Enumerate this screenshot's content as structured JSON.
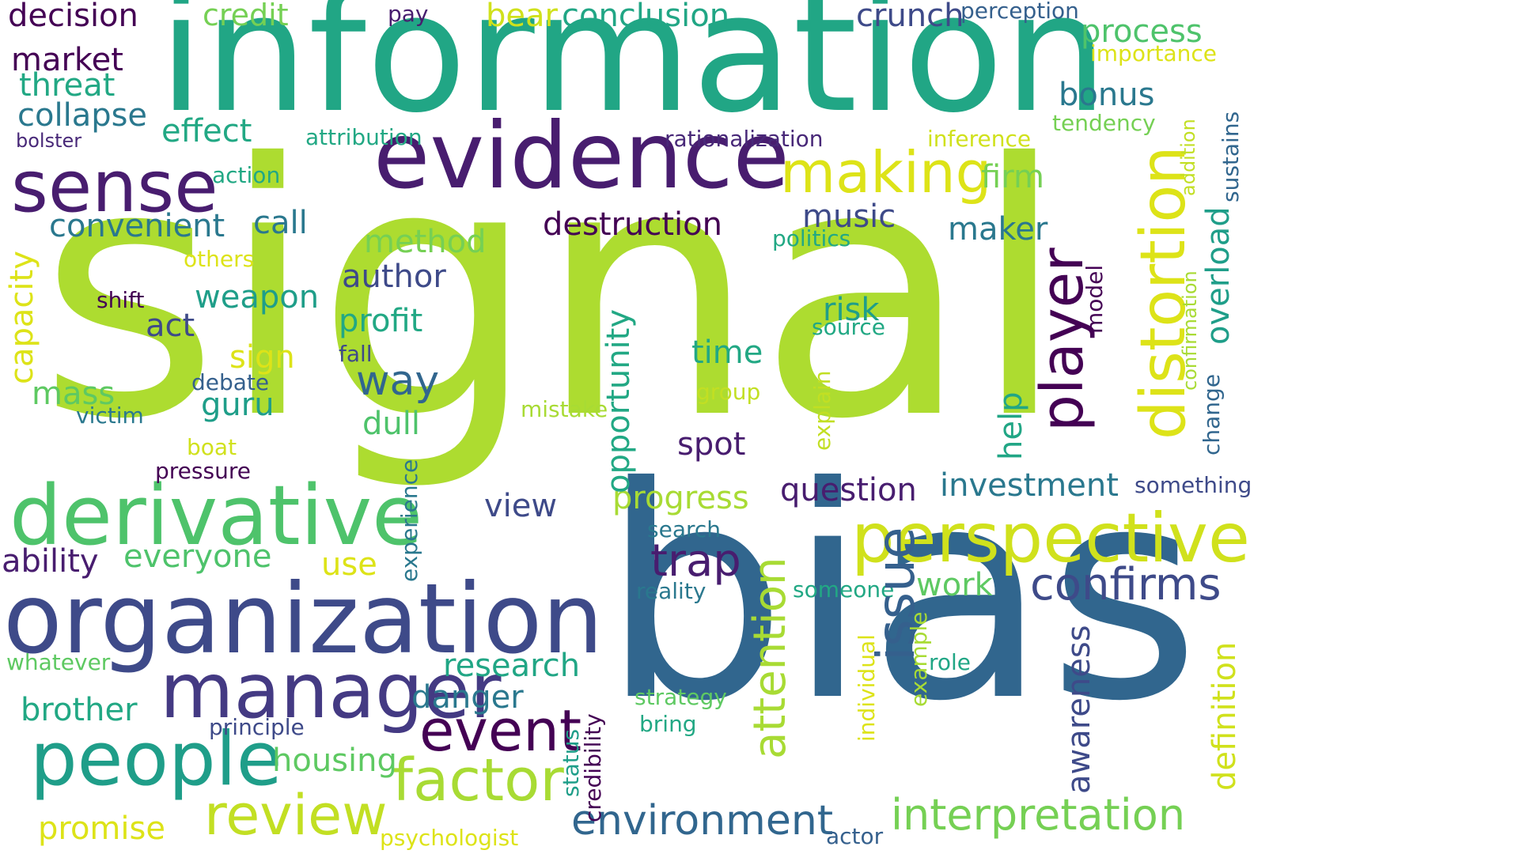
{
  "palette": {
    "lime": "#addc30",
    "lime2": "#a8db34",
    "teal": "#21a685",
    "blue": "#31668e",
    "indigo": "#443a83",
    "purple": "#481d6f",
    "purple2": "#440154",
    "navy": "#3e4a89",
    "yellow": "#dde318",
    "yellow2": "#d0e11c",
    "green": "#4ec36b",
    "green2": "#75d054",
    "sea": "#1f9e89",
    "cyan": "#2a788e",
    "steel": "#35608d",
    "deep": "#482878",
    "jade": "#22a884",
    "moss": "#5ec962",
    "lemon": "#c2df23"
  },
  "words": [
    {
      "text": "signal",
      "color": "#addc30"
    },
    {
      "text": "information",
      "color": "#21a685"
    },
    {
      "text": "bias",
      "color": "#31668e"
    },
    {
      "text": "evidence",
      "color": "#481d6f"
    },
    {
      "text": "organization",
      "color": "#3e4a89"
    },
    {
      "text": "derivative",
      "color": "#4ec36b"
    },
    {
      "text": "perspective",
      "color": "#d0e11c"
    },
    {
      "text": "manager",
      "color": "#443a83"
    },
    {
      "text": "people",
      "color": "#1f9e89"
    },
    {
      "text": "sense",
      "color": "#481d6f"
    },
    {
      "text": "making",
      "color": "#dde318"
    },
    {
      "text": "distortion",
      "color": "#dde318"
    },
    {
      "text": "player",
      "color": "#440154"
    },
    {
      "text": "factor",
      "color": "#a8db34"
    },
    {
      "text": "review",
      "color": "#c2df23"
    },
    {
      "text": "event",
      "color": "#440154"
    },
    {
      "text": "issue",
      "color": "#35608d"
    },
    {
      "text": "interpretation",
      "color": "#75d054"
    },
    {
      "text": "environment",
      "color": "#31668e"
    },
    {
      "text": "confirms",
      "color": "#3e4a89"
    },
    {
      "text": "attention",
      "color": "#a8db34"
    },
    {
      "text": "trap",
      "color": "#481d6f"
    },
    {
      "text": "decision",
      "color": "#440154"
    },
    {
      "text": "credit",
      "color": "#75d054"
    },
    {
      "text": "pay",
      "color": "#481d6f"
    },
    {
      "text": "bear",
      "color": "#d0e11c"
    },
    {
      "text": "conclusion",
      "color": "#21a685"
    },
    {
      "text": "crunch",
      "color": "#3e4a89"
    },
    {
      "text": "perception",
      "color": "#35608d"
    },
    {
      "text": "process",
      "color": "#4ec36b"
    },
    {
      "text": "importance",
      "color": "#dde318"
    },
    {
      "text": "market",
      "color": "#440154"
    },
    {
      "text": "threat",
      "color": "#22a884"
    },
    {
      "text": "collapse",
      "color": "#2a788e"
    },
    {
      "text": "bolster",
      "color": "#482878"
    },
    {
      "text": "effect",
      "color": "#22a884"
    },
    {
      "text": "attribution",
      "color": "#22a884"
    },
    {
      "text": "rationalization",
      "color": "#482878"
    },
    {
      "text": "inference",
      "color": "#d0e11c"
    },
    {
      "text": "tendency",
      "color": "#75d054"
    },
    {
      "text": "bonus",
      "color": "#2a788e"
    },
    {
      "text": "firm",
      "color": "#75d054"
    },
    {
      "text": "action",
      "color": "#22a884"
    },
    {
      "text": "convenient",
      "color": "#2a788e"
    },
    {
      "text": "call",
      "color": "#2a788e"
    },
    {
      "text": "destruction",
      "color": "#440154"
    },
    {
      "text": "music",
      "color": "#3e4a89"
    },
    {
      "text": "maker",
      "color": "#2a788e"
    },
    {
      "text": "politics",
      "color": "#22a884"
    },
    {
      "text": "method",
      "color": "#75d054"
    },
    {
      "text": "capacity",
      "color": "#dde318"
    },
    {
      "text": "others",
      "color": "#dde318"
    },
    {
      "text": "author",
      "color": "#3e4a89"
    },
    {
      "text": "weapon",
      "color": "#1f9e89"
    },
    {
      "text": "shift",
      "color": "#440154"
    },
    {
      "text": "act",
      "color": "#3e4a89"
    },
    {
      "text": "profit",
      "color": "#22a884"
    },
    {
      "text": "opportunity",
      "color": "#22a884"
    },
    {
      "text": "risk",
      "color": "#1f9e89"
    },
    {
      "text": "source",
      "color": "#22a884"
    },
    {
      "text": "overload",
      "color": "#1f9e89"
    },
    {
      "text": "sign",
      "color": "#dde318"
    },
    {
      "text": "fall",
      "color": "#3e4a89"
    },
    {
      "text": "way",
      "color": "#31668e"
    },
    {
      "text": "time",
      "color": "#22a884"
    },
    {
      "text": "model",
      "color": "#440154"
    },
    {
      "text": "confirmation",
      "color": "#a8db34"
    },
    {
      "text": "addition",
      "color": "#c2df23"
    },
    {
      "text": "sustains",
      "color": "#31668e"
    },
    {
      "text": "mass",
      "color": "#5ec962"
    },
    {
      "text": "debate",
      "color": "#35608d"
    },
    {
      "text": "guru",
      "color": "#1f9e89"
    },
    {
      "text": "victim",
      "color": "#2a788e"
    },
    {
      "text": "mistake",
      "color": "#a8db34"
    },
    {
      "text": "group",
      "color": "#c2df23"
    },
    {
      "text": "explain",
      "color": "#c2df23"
    },
    {
      "text": "help",
      "color": "#21a685"
    },
    {
      "text": "change",
      "color": "#31668e"
    },
    {
      "text": "dull",
      "color": "#4ec36b"
    },
    {
      "text": "spot",
      "color": "#481d6f"
    },
    {
      "text": "boat",
      "color": "#d0e11c"
    },
    {
      "text": "pressure",
      "color": "#440154"
    },
    {
      "text": "investment",
      "color": "#2a788e"
    },
    {
      "text": "question",
      "color": "#481d6f"
    },
    {
      "text": "progress",
      "color": "#a8db34"
    },
    {
      "text": "something",
      "color": "#3e4a89"
    },
    {
      "text": "experience",
      "color": "#2a788e"
    },
    {
      "text": "view",
      "color": "#3e4a89"
    },
    {
      "text": "search",
      "color": "#2a788e"
    },
    {
      "text": "ability",
      "color": "#481d6f"
    },
    {
      "text": "everyone",
      "color": "#4ec36b"
    },
    {
      "text": "use",
      "color": "#dde318"
    },
    {
      "text": "reality",
      "color": "#2a788e"
    },
    {
      "text": "someone",
      "color": "#22a884"
    },
    {
      "text": "work",
      "color": "#5ec962"
    },
    {
      "text": "awareness",
      "color": "#3e4a89"
    },
    {
      "text": "definition",
      "color": "#d0e11c"
    },
    {
      "text": "individual",
      "color": "#dde318"
    },
    {
      "text": "example",
      "color": "#a8db34"
    },
    {
      "text": "role",
      "color": "#21a685"
    },
    {
      "text": "whatever",
      "color": "#5ec962"
    },
    {
      "text": "research",
      "color": "#21a685"
    },
    {
      "text": "danger",
      "color": "#2a788e"
    },
    {
      "text": "credibility",
      "color": "#440154"
    },
    {
      "text": "strategy",
      "color": "#5ec962"
    },
    {
      "text": "status",
      "color": "#1f9e89"
    },
    {
      "text": "bring",
      "color": "#22a884"
    },
    {
      "text": "brother",
      "color": "#22a884"
    },
    {
      "text": "principle",
      "color": "#3e4a89"
    },
    {
      "text": "housing",
      "color": "#5ec962"
    },
    {
      "text": "promise",
      "color": "#dde318"
    },
    {
      "text": "psychologist",
      "color": "#dde318"
    },
    {
      "text": "actor",
      "color": "#35608d"
    }
  ]
}
